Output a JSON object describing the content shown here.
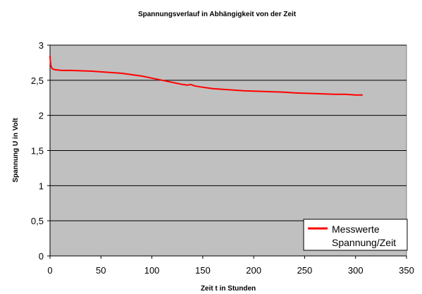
{
  "chart_data": {
    "type": "line",
    "title": "Spannungsverlauf in Abhängigkeit von der Zeit",
    "xlabel": "Zeit t in Stunden",
    "ylabel": "Spannung U in Volt",
    "xlim": [
      0,
      350
    ],
    "ylim": [
      0,
      3
    ],
    "x_ticks": [
      0,
      50,
      100,
      150,
      200,
      250,
      300,
      350
    ],
    "x_tick_labels": [
      "0",
      "50",
      "100",
      "150",
      "200",
      "250",
      "300",
      "350"
    ],
    "y_ticks": [
      0,
      0.5,
      1,
      1.5,
      2,
      2.5,
      3
    ],
    "y_tick_labels": [
      "0",
      "0,5",
      "1",
      "1,5",
      "2",
      "2,5",
      "3"
    ],
    "grid": "horizontal",
    "plot_background": "#c0c0c0",
    "legend_position": "bottom-right",
    "legend_lines": [
      "Messwerte",
      "Spannung/Zeit"
    ],
    "series": [
      {
        "name": "Messwerte Spannung/Zeit",
        "color": "#ff0000",
        "x": [
          0,
          0.3,
          0.7,
          1.2,
          2,
          3,
          5,
          8,
          12,
          20,
          30,
          40,
          50,
          60,
          70,
          80,
          90,
          100,
          110,
          120,
          130,
          135,
          138,
          142,
          150,
          160,
          170,
          180,
          190,
          200,
          210,
          220,
          230,
          240,
          250,
          260,
          270,
          280,
          290,
          300,
          307
        ],
        "y": [
          2.85,
          2.78,
          2.72,
          2.69,
          2.67,
          2.66,
          2.65,
          2.645,
          2.64,
          2.64,
          2.635,
          2.63,
          2.62,
          2.61,
          2.6,
          2.58,
          2.56,
          2.53,
          2.5,
          2.47,
          2.44,
          2.43,
          2.44,
          2.42,
          2.4,
          2.38,
          2.37,
          2.36,
          2.35,
          2.345,
          2.34,
          2.335,
          2.33,
          2.32,
          2.315,
          2.31,
          2.305,
          2.3,
          2.3,
          2.29,
          2.29
        ]
      }
    ]
  }
}
